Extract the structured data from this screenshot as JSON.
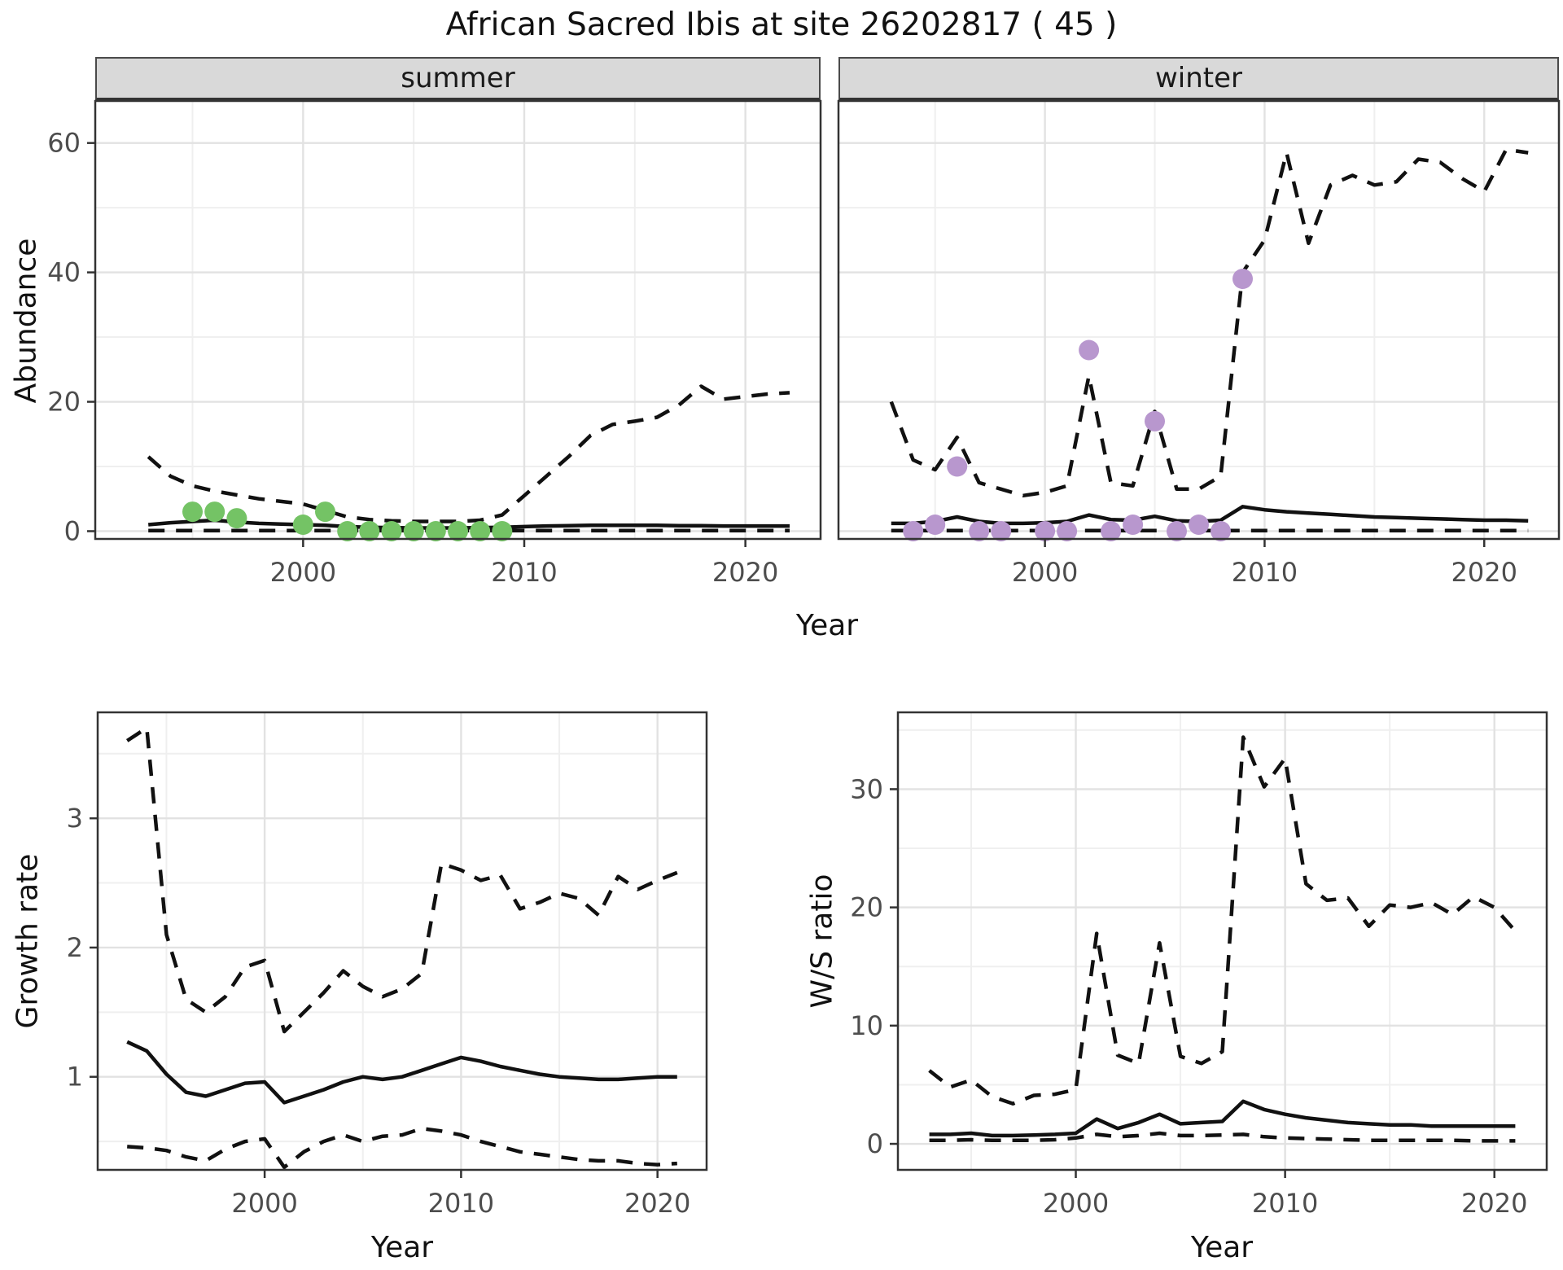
{
  "title": "African Sacred Ibis at site 26202817 ( 45 )",
  "facets": {
    "summer_label": "summer",
    "winter_label": "winter"
  },
  "axis_titles": {
    "abundance": "Abundance",
    "year_top": "Year",
    "growth": "Growth rate",
    "ws": "W/S ratio",
    "year_growth": "Year",
    "year_ws": "Year"
  },
  "colors": {
    "summer_point": "#74C365",
    "winter_point": "#B897CE",
    "line": "#111111",
    "strip_bg": "#D9D9D9",
    "grid_major": "#E2E2E2",
    "grid_minor": "#EFEFEF",
    "tick_text": "#4D4D4D",
    "panel_border": "#333333"
  },
  "chart_data": [
    {
      "id": "abundance-summer",
      "type": "line",
      "facet": "summer",
      "title": "",
      "xlabel": "Year",
      "ylabel": "Abundance",
      "xlim": [
        1990.6,
        2023.4
      ],
      "ylim": [
        -1.2,
        66.5
      ],
      "x_ticks": [
        2000,
        2010,
        2020
      ],
      "x_minor": [
        1995,
        2005,
        2015
      ],
      "y_ticks": [
        0,
        20,
        40,
        60
      ],
      "y_minor": [
        10,
        30,
        50
      ],
      "x": [
        1993,
        1994,
        1995,
        1996,
        1997,
        1998,
        1999,
        2000,
        2001,
        2002,
        2003,
        2004,
        2005,
        2006,
        2007,
        2008,
        2009,
        2010,
        2011,
        2012,
        2013,
        2014,
        2015,
        2016,
        2017,
        2018,
        2019,
        2020,
        2021,
        2022
      ],
      "series": [
        {
          "name": "upper-95ci",
          "style": "dashed",
          "values": [
            11.5,
            8.5,
            7.0,
            6.2,
            5.6,
            5.0,
            4.6,
            4.2,
            3.2,
            2.2,
            1.8,
            1.6,
            1.5,
            1.5,
            1.5,
            1.7,
            2.5,
            5.5,
            8.5,
            11.5,
            14.8,
            16.5,
            17.0,
            17.6,
            19.5,
            22.4,
            20.4,
            20.8,
            21.2,
            21.4
          ]
        },
        {
          "name": "median",
          "style": "solid",
          "values": [
            1.0,
            1.3,
            1.5,
            1.7,
            1.4,
            1.2,
            1.1,
            1.0,
            0.9,
            0.7,
            0.6,
            0.55,
            0.5,
            0.5,
            0.5,
            0.55,
            0.6,
            0.7,
            0.8,
            0.85,
            0.9,
            0.9,
            0.9,
            0.9,
            0.85,
            0.85,
            0.8,
            0.8,
            0.8,
            0.8
          ]
        },
        {
          "name": "lower-95ci",
          "style": "dashed",
          "values": [
            0.1,
            0.1,
            0.1,
            0.1,
            0.1,
            0.1,
            0.1,
            0.1,
            0.1,
            0.1,
            0.1,
            0.1,
            0.1,
            0.1,
            0.1,
            0.1,
            0.1,
            0.1,
            0.1,
            0.1,
            0.1,
            0.1,
            0.1,
            0.1,
            0.1,
            0.1,
            0.1,
            0.1,
            0.1,
            0.1
          ]
        }
      ],
      "points": {
        "name": "observed-counts",
        "color": "#74C365",
        "x": [
          1995,
          1996,
          1997,
          2000,
          2001,
          2002,
          2003,
          2004,
          2005,
          2006,
          2007,
          2008,
          2009
        ],
        "y": [
          3,
          3,
          2,
          1,
          3,
          0,
          0,
          0,
          0,
          0,
          0,
          0,
          0
        ]
      }
    },
    {
      "id": "abundance-winter",
      "type": "line",
      "facet": "winter",
      "title": "",
      "xlabel": "Year",
      "ylabel": "Abundance",
      "xlim": [
        1990.6,
        2023.4
      ],
      "ylim": [
        -1.2,
        66.5
      ],
      "x_ticks": [
        2000,
        2010,
        2020
      ],
      "x_minor": [
        1995,
        2005,
        2015
      ],
      "y_ticks": [
        0,
        20,
        40,
        60
      ],
      "y_minor": [
        10,
        30,
        50
      ],
      "x": [
        1993,
        1994,
        1995,
        1996,
        1997,
        1998,
        1999,
        2000,
        2001,
        2002,
        2003,
        2004,
        2005,
        2006,
        2007,
        2008,
        2009,
        2010,
        2011,
        2012,
        2013,
        2014,
        2015,
        2016,
        2017,
        2018,
        2019,
        2020,
        2021,
        2022
      ],
      "series": [
        {
          "name": "upper-95ci",
          "style": "dashed",
          "values": [
            20,
            11,
            9.5,
            14.5,
            7.5,
            6.5,
            5.5,
            6,
            7,
            24,
            7.5,
            7,
            18.5,
            6.5,
            6.5,
            8.5,
            40,
            45,
            58.5,
            44.5,
            53.5,
            55,
            53.5,
            54,
            57.5,
            57,
            54.5,
            52.5,
            59,
            58.5
          ]
        },
        {
          "name": "median",
          "style": "solid",
          "values": [
            1.2,
            1.2,
            1.5,
            2.2,
            1.5,
            1.2,
            1.2,
            1.3,
            1.5,
            2.5,
            1.8,
            1.7,
            2.3,
            1.6,
            1.5,
            1.7,
            3.8,
            3.3,
            3.0,
            2.8,
            2.6,
            2.4,
            2.2,
            2.1,
            2.0,
            1.9,
            1.8,
            1.7,
            1.7,
            1.6
          ]
        },
        {
          "name": "lower-95ci",
          "style": "dashed",
          "values": [
            0.1,
            0.1,
            0.1,
            0.1,
            0.1,
            0.1,
            0.1,
            0.1,
            0.1,
            0.1,
            0.1,
            0.1,
            0.1,
            0.1,
            0.1,
            0.1,
            0.1,
            0.1,
            0.1,
            0.1,
            0.1,
            0.1,
            0.1,
            0.1,
            0.1,
            0.1,
            0.1,
            0.1,
            0.1,
            0.1
          ]
        }
      ],
      "points": {
        "name": "observed-counts",
        "color": "#B897CE",
        "x": [
          1994,
          1995,
          1996,
          1997,
          1998,
          2000,
          2001,
          2002,
          2003,
          2004,
          2005,
          2006,
          2007,
          2008,
          2009
        ],
        "y": [
          0,
          1,
          10,
          0,
          0,
          0,
          0,
          28,
          0,
          1,
          17,
          0,
          1,
          0,
          39
        ]
      }
    },
    {
      "id": "growth-rate",
      "type": "line",
      "facet": "",
      "title": "",
      "xlabel": "Year",
      "ylabel": "Growth rate",
      "xlim": [
        1991.5,
        2022.5
      ],
      "ylim": [
        0.28,
        3.82
      ],
      "x_ticks": [
        2000,
        2010,
        2020
      ],
      "x_minor": [
        1995,
        2005,
        2015
      ],
      "y_ticks": [
        1,
        2,
        3
      ],
      "y_minor": [
        0.5,
        1.5,
        2.5,
        3.5
      ],
      "x": [
        1993,
        1994,
        1995,
        1996,
        1997,
        1998,
        1999,
        2000,
        2001,
        2002,
        2003,
        2004,
        2005,
        2006,
        2007,
        2008,
        2009,
        2010,
        2011,
        2012,
        2013,
        2014,
        2015,
        2016,
        2017,
        2018,
        2019,
        2020,
        2021
      ],
      "series": [
        {
          "name": "upper-95ci",
          "style": "dashed",
          "values": [
            3.6,
            3.7,
            2.1,
            1.6,
            1.5,
            1.62,
            1.85,
            1.9,
            1.35,
            1.5,
            1.65,
            1.82,
            1.7,
            1.62,
            1.68,
            1.8,
            2.65,
            2.6,
            2.52,
            2.56,
            2.3,
            2.35,
            2.42,
            2.38,
            2.25,
            2.55,
            2.45,
            2.52,
            2.58
          ]
        },
        {
          "name": "median",
          "style": "solid",
          "values": [
            1.27,
            1.2,
            1.02,
            0.88,
            0.85,
            0.9,
            0.95,
            0.96,
            0.8,
            0.85,
            0.9,
            0.96,
            1.0,
            0.98,
            1.0,
            1.05,
            1.1,
            1.15,
            1.12,
            1.08,
            1.05,
            1.02,
            1.0,
            0.99,
            0.98,
            0.98,
            0.99,
            1.0,
            1.0
          ]
        },
        {
          "name": "lower-95ci",
          "style": "dashed",
          "values": [
            0.46,
            0.45,
            0.43,
            0.38,
            0.35,
            0.44,
            0.5,
            0.52,
            0.3,
            0.42,
            0.5,
            0.55,
            0.5,
            0.54,
            0.55,
            0.6,
            0.58,
            0.55,
            0.5,
            0.46,
            0.42,
            0.4,
            0.38,
            0.36,
            0.35,
            0.35,
            0.33,
            0.32,
            0.33
          ]
        }
      ],
      "points": null
    },
    {
      "id": "ws-ratio",
      "type": "line",
      "facet": "",
      "title": "",
      "xlabel": "Year",
      "ylabel": "W/S ratio",
      "xlim": [
        1991.5,
        2022.5
      ],
      "ylim": [
        -2.2,
        36.5
      ],
      "x_ticks": [
        2000,
        2010,
        2020
      ],
      "x_minor": [
        1995,
        2005,
        2015
      ],
      "y_ticks": [
        0,
        10,
        20,
        30
      ],
      "y_minor": [
        5,
        15,
        25,
        35
      ],
      "x": [
        1993,
        1994,
        1995,
        1996,
        1997,
        1998,
        1999,
        2000,
        2001,
        2002,
        2003,
        2004,
        2005,
        2006,
        2007,
        2008,
        2009,
        2010,
        2011,
        2012,
        2013,
        2014,
        2015,
        2016,
        2017,
        2018,
        2019,
        2020,
        2021
      ],
      "series": [
        {
          "name": "upper-95ci",
          "style": "dashed",
          "values": [
            6.2,
            4.8,
            5.4,
            4.0,
            3.4,
            4.1,
            4.2,
            4.6,
            17.8,
            7.5,
            6.8,
            17.0,
            7.4,
            6.8,
            7.8,
            34.4,
            30.2,
            32.6,
            22.0,
            20.6,
            20.8,
            18.4,
            20.2,
            20.0,
            20.4,
            19.4,
            20.9,
            20.0,
            18.0
          ]
        },
        {
          "name": "median",
          "style": "solid",
          "values": [
            0.8,
            0.8,
            0.9,
            0.7,
            0.7,
            0.75,
            0.8,
            0.9,
            2.1,
            1.3,
            1.8,
            2.5,
            1.7,
            1.8,
            1.9,
            3.6,
            2.9,
            2.5,
            2.2,
            2.0,
            1.8,
            1.7,
            1.6,
            1.6,
            1.5,
            1.5,
            1.5,
            1.5,
            1.5
          ]
        },
        {
          "name": "lower-95ci",
          "style": "dashed",
          "values": [
            0.3,
            0.3,
            0.35,
            0.3,
            0.3,
            0.3,
            0.35,
            0.5,
            0.8,
            0.6,
            0.7,
            0.9,
            0.7,
            0.7,
            0.75,
            0.8,
            0.6,
            0.5,
            0.45,
            0.4,
            0.35,
            0.3,
            0.3,
            0.3,
            0.3,
            0.3,
            0.25,
            0.25,
            0.25
          ]
        }
      ],
      "points": null
    }
  ]
}
